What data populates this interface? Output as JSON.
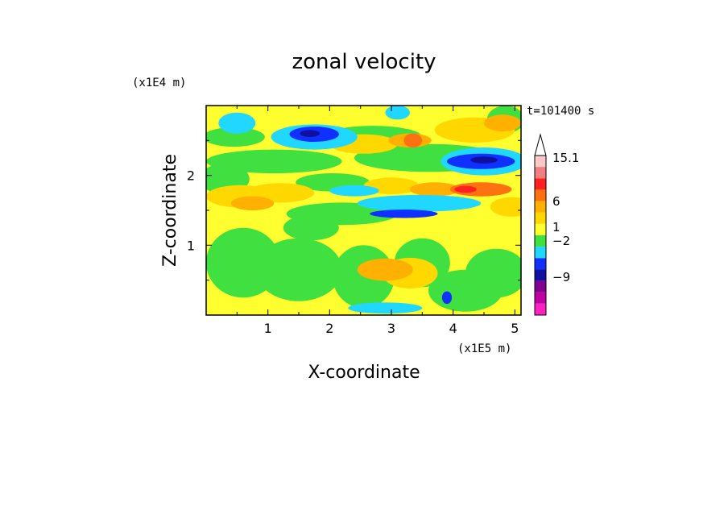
{
  "chart_data": {
    "type": "heatmap",
    "title": "zonal velocity",
    "xlabel": "X-coordinate",
    "ylabel": "Z-coordinate",
    "x_unit": "(x1E5 m)",
    "y_unit": "(x1E4 m)",
    "time_label": "t=101400 s",
    "xlim": [
      0.0,
      5.1
    ],
    "ylim": [
      0.0,
      3.0
    ],
    "xticks": [
      "1",
      "2",
      "3",
      "4",
      "5"
    ],
    "yticks": [
      "1",
      "2"
    ],
    "colorbar": {
      "labels": [
        "15.1",
        "6",
        "1",
        "−2",
        "−9"
      ],
      "colors": [
        "#ffc8c8",
        "#f08080",
        "#ff2020",
        "#ff7010",
        "#ffb000",
        "#ffd800",
        "#ffff30",
        "#40e040",
        "#20d8ff",
        "#1030ff",
        "#1010a0",
        "#800090",
        "#c000a0",
        "#ff20c0"
      ]
    },
    "palette": {
      "yellow": "#ffff30",
      "light_orange": "#ffd800",
      "orange": "#ffb000",
      "dark_orange": "#ff7010",
      "red": "#ff2020",
      "green": "#40e040",
      "cyan": "#20d8ff",
      "blue": "#1030ff",
      "navy": "#1010a0"
    }
  }
}
